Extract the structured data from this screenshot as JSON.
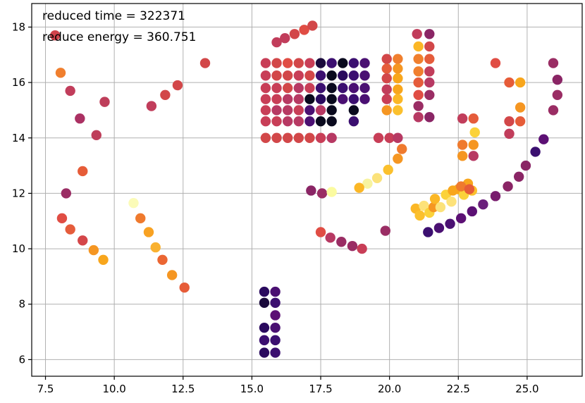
{
  "chart_data": {
    "type": "scatter",
    "title": "",
    "xlabel": "",
    "ylabel": "",
    "xlim": [
      7.0,
      27.0
    ],
    "ylim": [
      5.4,
      18.85
    ],
    "grid": true,
    "legend": "none",
    "colormap": "inferno",
    "annotations": [
      "reduced time = 322371",
      "reduce energy = 360.751"
    ],
    "x_ticks": [
      7.5,
      10.0,
      12.5,
      15.0,
      17.5,
      20.0,
      22.5,
      25.0
    ],
    "x_tick_labels": [
      "7.5",
      "10.0",
      "12.5",
      "15.0",
      "17.5",
      "20.0",
      "22.5",
      "25.0"
    ],
    "y_ticks": [
      6,
      8,
      10,
      12,
      14,
      16,
      18
    ],
    "y_tick_labels": [
      "6",
      "8",
      "10",
      "12",
      "14",
      "16",
      "18"
    ],
    "points": [
      [
        7.85,
        17.7,
        "#d2434b"
      ],
      [
        8.05,
        16.35,
        "#f07f2e"
      ],
      [
        8.4,
        15.7,
        "#c13d5b"
      ],
      [
        8.75,
        14.7,
        "#ab3163"
      ],
      [
        9.35,
        14.1,
        "#be3e5a"
      ],
      [
        9.65,
        15.3,
        "#be3e5a"
      ],
      [
        8.85,
        12.8,
        "#e65c38"
      ],
      [
        8.25,
        12.0,
        "#9a2d64"
      ],
      [
        8.1,
        11.1,
        "#e04d44"
      ],
      [
        8.4,
        10.7,
        "#e55c3b"
      ],
      [
        8.85,
        10.3,
        "#d44649"
      ],
      [
        9.25,
        9.95,
        "#f59622"
      ],
      [
        9.6,
        9.6,
        "#f8a61c"
      ],
      [
        10.7,
        11.65,
        "#fbfbb8"
      ],
      [
        10.95,
        11.1,
        "#ef7a2e"
      ],
      [
        11.25,
        10.6,
        "#f8a222"
      ],
      [
        11.5,
        10.05,
        "#f9b130"
      ],
      [
        11.75,
        9.6,
        "#eb6633"
      ],
      [
        12.1,
        9.05,
        "#f59622"
      ],
      [
        12.55,
        8.6,
        "#e65c38"
      ],
      [
        11.35,
        15.15,
        "#c13d5b"
      ],
      [
        11.85,
        15.55,
        "#d24749"
      ],
      [
        12.3,
        15.9,
        "#d24749"
      ],
      [
        13.3,
        16.7,
        "#d24749"
      ],
      [
        15.9,
        17.45,
        "#c13d5b"
      ],
      [
        16.2,
        17.6,
        "#c13d5b"
      ],
      [
        16.55,
        17.75,
        "#d24749"
      ],
      [
        16.9,
        17.9,
        "#e04d44"
      ],
      [
        17.2,
        18.05,
        "#d24749"
      ],
      [
        15.5,
        16.7,
        "#c83e57"
      ],
      [
        15.9,
        16.7,
        "#d24749"
      ],
      [
        16.3,
        16.7,
        "#e04d44"
      ],
      [
        16.7,
        16.7,
        "#d24749"
      ],
      [
        17.1,
        16.7,
        "#c83e57"
      ],
      [
        17.5,
        16.7,
        "#1a0a3c"
      ],
      [
        17.9,
        16.7,
        "#3b0f70"
      ],
      [
        18.3,
        16.7,
        "#0a0a1e"
      ],
      [
        18.7,
        16.7,
        "#3b0f70"
      ],
      [
        19.1,
        16.7,
        "#4a1072"
      ],
      [
        15.5,
        16.25,
        "#c83e57"
      ],
      [
        15.9,
        16.25,
        "#d24749"
      ],
      [
        16.3,
        16.25,
        "#d24749"
      ],
      [
        16.7,
        16.25,
        "#c83e57"
      ],
      [
        17.1,
        16.25,
        "#d24749"
      ],
      [
        17.5,
        16.25,
        "#3b0f70"
      ],
      [
        17.9,
        16.25,
        "#0a0a1e"
      ],
      [
        18.3,
        16.25,
        "#2a0a5e"
      ],
      [
        18.7,
        16.25,
        "#3b0f70"
      ],
      [
        19.1,
        16.25,
        "#4a1072"
      ],
      [
        15.5,
        15.8,
        "#c83e57"
      ],
      [
        15.9,
        15.8,
        "#c83e57"
      ],
      [
        16.3,
        15.8,
        "#d24749"
      ],
      [
        16.7,
        15.8,
        "#b73963"
      ],
      [
        17.1,
        15.8,
        "#c83e57"
      ],
      [
        17.5,
        15.8,
        "#3b0f70"
      ],
      [
        17.9,
        15.8,
        "#0a0a1e"
      ],
      [
        18.3,
        15.8,
        "#3b0f70"
      ],
      [
        18.7,
        15.8,
        "#4a1072"
      ],
      [
        19.1,
        15.8,
        "#4a1072"
      ],
      [
        15.5,
        15.4,
        "#c83e57"
      ],
      [
        15.9,
        15.4,
        "#c83e57"
      ],
      [
        16.3,
        15.4,
        "#b73963"
      ],
      [
        16.7,
        15.4,
        "#b73963"
      ],
      [
        17.1,
        15.4,
        "#0a0a1e"
      ],
      [
        17.5,
        15.4,
        "#2a0a5e"
      ],
      [
        17.9,
        15.4,
        "#0a0a1e"
      ],
      [
        18.3,
        15.4,
        "#4a1072"
      ],
      [
        18.7,
        15.4,
        "#3b0f70"
      ],
      [
        19.1,
        15.4,
        "#4a1072"
      ],
      [
        15.5,
        15.0,
        "#c83e57"
      ],
      [
        15.9,
        15.0,
        "#b73963"
      ],
      [
        16.3,
        15.0,
        "#b73963"
      ],
      [
        16.7,
        15.0,
        "#c83e57"
      ],
      [
        17.1,
        15.0,
        "#4a1072"
      ],
      [
        17.5,
        15.0,
        "#b73963"
      ],
      [
        17.9,
        15.0,
        "#0a0a1e"
      ],
      [
        18.7,
        15.0,
        "#0a0a1e"
      ],
      [
        15.5,
        14.6,
        "#c83e57"
      ],
      [
        15.9,
        14.6,
        "#c83e57"
      ],
      [
        16.3,
        14.6,
        "#b73963"
      ],
      [
        16.7,
        14.6,
        "#b73963"
      ],
      [
        17.1,
        14.6,
        "#4a1072"
      ],
      [
        17.5,
        14.6,
        "#0a0a1e"
      ],
      [
        17.9,
        14.6,
        "#0a0a1e"
      ],
      [
        18.7,
        14.6,
        "#3b0f70"
      ],
      [
        15.5,
        14.0,
        "#d24749"
      ],
      [
        15.9,
        14.0,
        "#d24749"
      ],
      [
        16.3,
        14.0,
        "#d24749"
      ],
      [
        16.7,
        14.0,
        "#d24749"
      ],
      [
        17.1,
        14.0,
        "#d24749"
      ],
      [
        17.5,
        14.0,
        "#c83e57"
      ],
      [
        17.9,
        14.0,
        "#b73963"
      ],
      [
        19.6,
        14.0,
        "#c83e57"
      ],
      [
        20.0,
        14.0,
        "#c83e57"
      ],
      [
        20.3,
        14.0,
        "#b73963"
      ],
      [
        20.45,
        13.6,
        "#ef7a2e"
      ],
      [
        20.3,
        13.25,
        "#f59622"
      ],
      [
        19.95,
        12.85,
        "#fbc02d"
      ],
      [
        19.55,
        12.55,
        "#fbe27a"
      ],
      [
        19.2,
        12.35,
        "#f7f3a0"
      ],
      [
        18.9,
        12.2,
        "#fbb726"
      ],
      [
        17.15,
        12.1,
        "#8a2565"
      ],
      [
        17.55,
        12.0,
        "#9a2d64"
      ],
      [
        17.9,
        12.05,
        "#fbfba0"
      ],
      [
        17.5,
        10.6,
        "#e04d44"
      ],
      [
        17.85,
        10.4,
        "#b73963"
      ],
      [
        18.25,
        10.25,
        "#9a2d64"
      ],
      [
        18.65,
        10.1,
        "#9a2d64"
      ],
      [
        19.0,
        10.0,
        "#c83e57"
      ],
      [
        19.85,
        10.65,
        "#9a2d64"
      ],
      [
        19.9,
        16.85,
        "#d24749"
      ],
      [
        20.3,
        16.85,
        "#f07f2e"
      ],
      [
        19.9,
        16.5,
        "#e55c3b"
      ],
      [
        20.3,
        16.5,
        "#f59622"
      ],
      [
        19.9,
        16.15,
        "#d24749"
      ],
      [
        20.3,
        16.15,
        "#f8a61c"
      ],
      [
        19.9,
        15.75,
        "#c13d5b"
      ],
      [
        20.3,
        15.75,
        "#f8a61c"
      ],
      [
        19.9,
        15.4,
        "#c83e57"
      ],
      [
        20.3,
        15.4,
        "#fbb726"
      ],
      [
        19.9,
        15.0,
        "#f59622"
      ],
      [
        20.3,
        15.0,
        "#fbc02d"
      ],
      [
        21.0,
        17.75,
        "#c13d5b"
      ],
      [
        21.45,
        17.75,
        "#8a2565"
      ],
      [
        21.05,
        17.3,
        "#fbb726"
      ],
      [
        21.45,
        17.3,
        "#d24749"
      ],
      [
        21.05,
        16.85,
        "#f07f2e"
      ],
      [
        21.45,
        16.85,
        "#e55c3b"
      ],
      [
        21.05,
        16.4,
        "#f07f2e"
      ],
      [
        21.45,
        16.4,
        "#c13d5b"
      ],
      [
        21.05,
        16.0,
        "#e55c3b"
      ],
      [
        21.45,
        16.0,
        "#b73963"
      ],
      [
        21.05,
        15.55,
        "#e04d44"
      ],
      [
        21.45,
        15.55,
        "#9a2d64"
      ],
      [
        21.05,
        15.15,
        "#9a2d64"
      ],
      [
        21.05,
        14.75,
        "#b73963"
      ],
      [
        21.45,
        14.75,
        "#8a2565"
      ],
      [
        20.95,
        11.45,
        "#fbb726"
      ],
      [
        21.1,
        11.2,
        "#fbc02d"
      ],
      [
        21.25,
        11.55,
        "#fde279"
      ],
      [
        21.45,
        11.3,
        "#fbd23a"
      ],
      [
        21.6,
        11.5,
        "#f59622"
      ],
      [
        21.65,
        11.8,
        "#fbb726"
      ],
      [
        21.85,
        11.5,
        "#fbe27a"
      ],
      [
        22.05,
        11.95,
        "#fbd23a"
      ],
      [
        22.25,
        11.7,
        "#fde279"
      ],
      [
        22.5,
        12.15,
        "#f8a61c"
      ],
      [
        22.7,
        11.95,
        "#fbd23a"
      ],
      [
        22.85,
        12.35,
        "#f8a61c"
      ],
      [
        23.0,
        12.1,
        "#fbc02d"
      ],
      [
        22.3,
        12.1,
        "#f8a61c"
      ],
      [
        22.6,
        12.25,
        "#ef7a2e"
      ],
      [
        22.9,
        12.15,
        "#e65c38"
      ],
      [
        21.4,
        10.6,
        "#3b0f70"
      ],
      [
        21.8,
        10.75,
        "#4a1072"
      ],
      [
        22.2,
        10.9,
        "#4a1072"
      ],
      [
        22.6,
        11.1,
        "#5c1074"
      ],
      [
        23.0,
        11.35,
        "#5c1074"
      ],
      [
        23.4,
        11.6,
        "#6a1f7b"
      ],
      [
        23.85,
        11.9,
        "#781c6d"
      ],
      [
        24.3,
        12.25,
        "#8a2565"
      ],
      [
        24.7,
        12.6,
        "#8a2565"
      ],
      [
        24.95,
        13.0,
        "#8a2565"
      ],
      [
        25.3,
        13.5,
        "#3b0f70"
      ],
      [
        25.6,
        13.95,
        "#5c1074"
      ],
      [
        22.65,
        14.7,
        "#c13d5b"
      ],
      [
        23.05,
        14.7,
        "#e55c3b"
      ],
      [
        23.1,
        14.2,
        "#fbd23a"
      ],
      [
        22.65,
        13.75,
        "#ef7a2e"
      ],
      [
        23.05,
        13.75,
        "#f59622"
      ],
      [
        22.65,
        13.35,
        "#f59622"
      ],
      [
        23.05,
        13.35,
        "#b73963"
      ],
      [
        23.85,
        16.7,
        "#e04d44"
      ],
      [
        24.35,
        16.0,
        "#e65c38"
      ],
      [
        24.75,
        16.0,
        "#f8a61c"
      ],
      [
        24.35,
        14.6,
        "#d24749"
      ],
      [
        24.75,
        14.6,
        "#e65c38"
      ],
      [
        24.75,
        15.1,
        "#f59622"
      ],
      [
        24.35,
        14.15,
        "#c13d5b"
      ],
      [
        25.95,
        16.7,
        "#9a2d64"
      ],
      [
        26.1,
        16.1,
        "#8a2565"
      ],
      [
        26.1,
        15.55,
        "#9a2d64"
      ],
      [
        25.95,
        15.0,
        "#9a2d64"
      ],
      [
        15.45,
        8.45,
        "#2a0a5e"
      ],
      [
        15.85,
        8.45,
        "#4a1072"
      ],
      [
        15.45,
        8.05,
        "#1a0a3c"
      ],
      [
        15.85,
        8.05,
        "#3b0f70"
      ],
      [
        15.85,
        7.6,
        "#5c1074"
      ],
      [
        15.45,
        7.15,
        "#2a0a5e"
      ],
      [
        15.85,
        7.15,
        "#4a1072"
      ],
      [
        15.45,
        6.7,
        "#3b0f70"
      ],
      [
        15.85,
        6.7,
        "#3b0f70"
      ],
      [
        15.45,
        6.25,
        "#2a0a5e"
      ],
      [
        15.85,
        6.25,
        "#3b0f70"
      ]
    ]
  }
}
